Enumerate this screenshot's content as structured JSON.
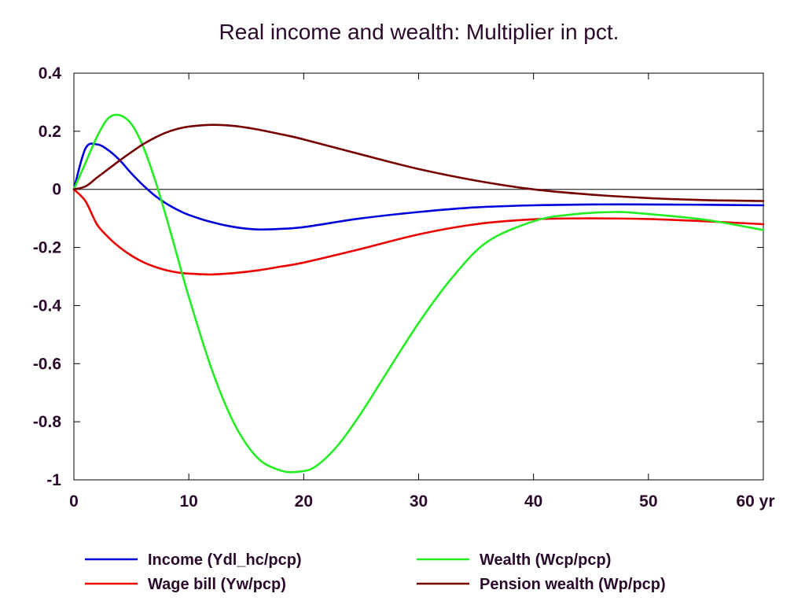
{
  "chart_data": {
    "type": "line",
    "title": "Real income and wealth: Multiplier in pct.",
    "xlabel": "",
    "ylabel": "",
    "xlim": [
      0,
      60
    ],
    "ylim": [
      -1,
      0.4
    ],
    "x_ticks": [
      0,
      10,
      20,
      30,
      40,
      50,
      60
    ],
    "x_tick_labels": [
      "0",
      "10",
      "20",
      "30",
      "40",
      "50",
      "60 yr"
    ],
    "y_ticks": [
      0.4,
      0.2,
      0,
      -0.2,
      -0.4,
      -0.6,
      -0.8,
      -1
    ],
    "y_tick_labels": [
      "0.4",
      "0.2",
      "0",
      "-0.2",
      "-0.4",
      "-0.6",
      "-0.8",
      "-1"
    ],
    "grid": false,
    "zero_line": true,
    "legend_position": "bottom",
    "series": [
      {
        "name": "Income (Ydl_hc/pcp)",
        "color": "#0000dd",
        "x": [
          0,
          1,
          2,
          3,
          4,
          5,
          6,
          7,
          8,
          9,
          10,
          12,
          14,
          16,
          18,
          20,
          25,
          30,
          35,
          40,
          45,
          50,
          55,
          60
        ],
        "y": [
          0,
          0.14,
          0.155,
          0.135,
          0.1,
          0.055,
          0.015,
          -0.02,
          -0.048,
          -0.07,
          -0.088,
          -0.113,
          -0.13,
          -0.138,
          -0.136,
          -0.13,
          -0.1,
          -0.078,
          -0.062,
          -0.055,
          -0.052,
          -0.052,
          -0.053,
          -0.055
        ]
      },
      {
        "name": "Wage bill (Yw/pcp)",
        "color": "#ee0000",
        "x": [
          0,
          1,
          2,
          3,
          4,
          5,
          6,
          7,
          8,
          9,
          10,
          12,
          14,
          16,
          18,
          20,
          25,
          30,
          35,
          40,
          45,
          50,
          55,
          60
        ],
        "y": [
          0,
          -0.04,
          -0.12,
          -0.165,
          -0.2,
          -0.228,
          -0.25,
          -0.266,
          -0.278,
          -0.286,
          -0.29,
          -0.293,
          -0.288,
          -0.279,
          -0.266,
          -0.252,
          -0.205,
          -0.155,
          -0.12,
          -0.103,
          -0.1,
          -0.102,
          -0.11,
          -0.12
        ]
      },
      {
        "name": "Wealth (Wcp/pcp)",
        "color": "#22ee22",
        "x": [
          0,
          1,
          2,
          3,
          4,
          5,
          6,
          7,
          8,
          9,
          10,
          12,
          14,
          16,
          18,
          19.5,
          21,
          23,
          25,
          27,
          30,
          33,
          36,
          40,
          43,
          47,
          50,
          55,
          60
        ],
        "y": [
          0,
          0.09,
          0.18,
          0.245,
          0.255,
          0.225,
          0.15,
          0.04,
          -0.09,
          -0.23,
          -0.37,
          -0.62,
          -0.81,
          -0.925,
          -0.968,
          -0.972,
          -0.955,
          -0.88,
          -0.77,
          -0.645,
          -0.46,
          -0.3,
          -0.18,
          -0.11,
          -0.088,
          -0.078,
          -0.085,
          -0.105,
          -0.14
        ]
      },
      {
        "name": "Pension wealth (Wp/pcp)",
        "color": "#770000",
        "x": [
          0,
          1,
          2,
          3,
          4,
          5,
          6,
          7,
          8,
          9,
          10,
          12,
          14,
          16,
          18,
          20,
          25,
          30,
          35,
          40,
          45,
          50,
          55,
          60
        ],
        "y": [
          0,
          0.01,
          0.04,
          0.07,
          0.1,
          0.128,
          0.155,
          0.177,
          0.195,
          0.208,
          0.216,
          0.222,
          0.218,
          0.206,
          0.19,
          0.172,
          0.12,
          0.07,
          0.03,
          0.0,
          -0.018,
          -0.03,
          -0.037,
          -0.04
        ]
      }
    ]
  }
}
